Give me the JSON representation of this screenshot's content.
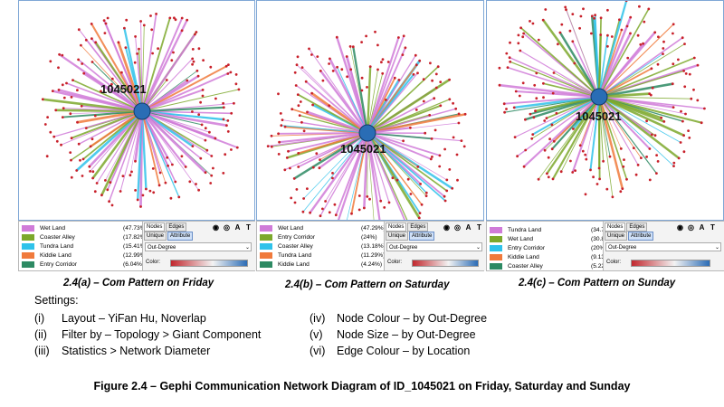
{
  "panels": [
    {
      "id": "a",
      "node_id": "1045021",
      "caption": "2.4(a) – Com Pattern on Friday",
      "legend": [
        {
          "name": "Wet Land",
          "pct": "(47.73%",
          "color": "#d07bd8"
        },
        {
          "name": "Coaster Alley",
          "pct": "(17.82%",
          "color": "#7ca82b"
        },
        {
          "name": "Tundra Land",
          "pct": "(15.41%",
          "color": "#2fc2ea"
        },
        {
          "name": "Kiddie Land",
          "pct": "(12.99%",
          "color": "#f07a3c"
        },
        {
          "name": "Entry Corridor",
          "pct": "(6.04%)",
          "color": "#2d8a63"
        }
      ]
    },
    {
      "id": "b",
      "node_id": "1045021",
      "caption": "2.4(b) – Com Pattern on Saturday",
      "legend": [
        {
          "name": "Wet Land",
          "pct": "(47.29%)",
          "color": "#d07bd8"
        },
        {
          "name": "Entry Corridor",
          "pct": "(24%)",
          "color": "#7ca82b"
        },
        {
          "name": "Coaster Alley",
          "pct": "(13.18%)",
          "color": "#2fc2ea"
        },
        {
          "name": "Tundra Land",
          "pct": "(11.29%)",
          "color": "#f07a3c"
        },
        {
          "name": "Kiddie Land",
          "pct": "(4.24%)",
          "color": "#2d8a63"
        }
      ]
    },
    {
      "id": "c",
      "node_id": "1045021",
      "caption": "2.4(c) – Com Pattern on Sunday",
      "legend": [
        {
          "name": "Tundra Land",
          "pct": "(34.78%)",
          "color": "#d07bd8"
        },
        {
          "name": "Wet Land",
          "pct": "(30.87%)",
          "color": "#7ca82b"
        },
        {
          "name": "Entry Corridor",
          "pct": "(20%)",
          "color": "#2fc2ea"
        },
        {
          "name": "Kiddie Land",
          "pct": "(9.13%)",
          "color": "#f07a3c"
        },
        {
          "name": "Coaster Alley",
          "pct": "(5.22%)",
          "color": "#2d8a63"
        }
      ]
    }
  ],
  "toolbar": {
    "tab_nodes": "Nodes",
    "tab_edges": "Edges",
    "tab_unique": "Unique",
    "tab_attribute": "Attribute",
    "dropdown_value": "Out-Degree",
    "color_label": "Color:"
  },
  "settings": {
    "title": "Settings:",
    "items": [
      {
        "num": "(i)",
        "text": "Layout – YiFan Hu, Noverlap"
      },
      {
        "num": "(ii)",
        "text": "Filter by – Topology > Giant Component"
      },
      {
        "num": "(iii)",
        "text": "Statistics > Network Diameter"
      },
      {
        "num": "(iv)",
        "text": "Node Colour – by Out-Degree"
      },
      {
        "num": "(v)",
        "text": "Node Size – by Out-Degree"
      },
      {
        "num": "(vi)",
        "text": "Edge Colour – by Location"
      }
    ]
  },
  "figure_caption": "Figure 2.4 – Gephi Communication Network Diagram of ID_1045021 on Friday, Saturday and Sunday",
  "colors": {
    "hub_fill": "#2a6db5",
    "peripheral_node": "#c8202a",
    "graph_border": "#7fa7d6",
    "edge_pink": "#d07bd8",
    "edge_green": "#7ca82b",
    "edge_cyan": "#2fc2ea",
    "edge_orange": "#f07a3c",
    "edge_teal": "#2d8a63"
  }
}
